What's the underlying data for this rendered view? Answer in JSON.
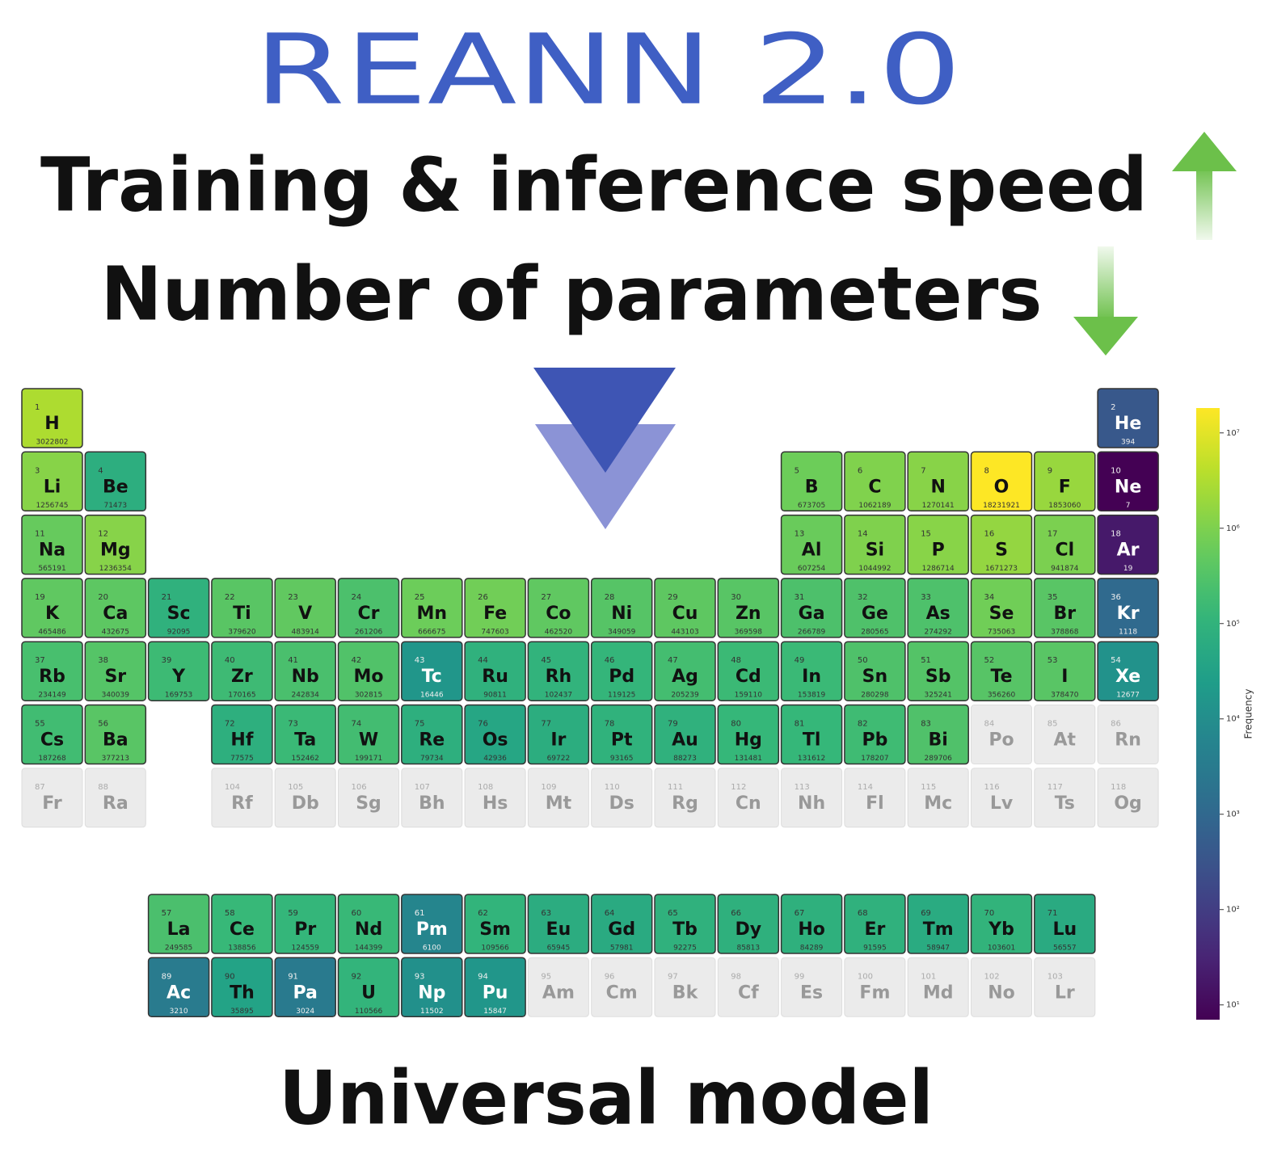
{
  "chart_data": {
    "type": "periodic_table",
    "title": "REANN 2.0",
    "annotations": [
      "Training & inference speed",
      "Number of parameters",
      "Universal model"
    ],
    "atomic_numbers": [
      1,
      2,
      3,
      4,
      5,
      6,
      7,
      8,
      9,
      10,
      11,
      12,
      13,
      14,
      15,
      16,
      17,
      18,
      19,
      20,
      21,
      22,
      23,
      24,
      25,
      26,
      27,
      28,
      29,
      30,
      31,
      32,
      33,
      34,
      35,
      36,
      37,
      38,
      39,
      40,
      41,
      42,
      43,
      44,
      45,
      46,
      47,
      48,
      49,
      50,
      51,
      52,
      53,
      54,
      55,
      56,
      57,
      58,
      59,
      60,
      61,
      62,
      63,
      64,
      65,
      66,
      67,
      68,
      69,
      70,
      71,
      72,
      73,
      74,
      75,
      76,
      77,
      78,
      79,
      80,
      81,
      82,
      83,
      84,
      85,
      86,
      87,
      88,
      89,
      90,
      91,
      92,
      93,
      94,
      95,
      96,
      97,
      98,
      99,
      100,
      101,
      102,
      103,
      104,
      105,
      106,
      107,
      108,
      109,
      110,
      111,
      112,
      113,
      114,
      115,
      116,
      117,
      118
    ],
    "categories": [
      "H",
      "He",
      "Li",
      "Be",
      "B",
      "C",
      "N",
      "O",
      "F",
      "Ne",
      "Na",
      "Mg",
      "Al",
      "Si",
      "P",
      "S",
      "Cl",
      "Ar",
      "K",
      "Ca",
      "Sc",
      "Ti",
      "V",
      "Cr",
      "Mn",
      "Fe",
      "Co",
      "Ni",
      "Cu",
      "Zn",
      "Ga",
      "Ge",
      "As",
      "Se",
      "Br",
      "Kr",
      "Rb",
      "Sr",
      "Y",
      "Zr",
      "Nb",
      "Mo",
      "Tc",
      "Ru",
      "Rh",
      "Pd",
      "Ag",
      "Cd",
      "In",
      "Sn",
      "Sb",
      "Te",
      "I",
      "Xe",
      "Cs",
      "Ba",
      "La",
      "Ce",
      "Pr",
      "Nd",
      "Pm",
      "Sm",
      "Eu",
      "Gd",
      "Tb",
      "Dy",
      "Ho",
      "Er",
      "Tm",
      "Yb",
      "Lu",
      "Hf",
      "Ta",
      "W",
      "Re",
      "Os",
      "Ir",
      "Pt",
      "Au",
      "Hg",
      "Tl",
      "Pb",
      "Bi",
      "Po",
      "At",
      "Rn",
      "Fr",
      "Ra",
      "Ac",
      "Th",
      "Pa",
      "U",
      "Np",
      "Pu",
      "Am",
      "Cm",
      "Bk",
      "Cf",
      "Es",
      "Fm",
      "Md",
      "No",
      "Lr",
      "Rf",
      "Db",
      "Sg",
      "Bh",
      "Hs",
      "Mt",
      "Ds",
      "Rg",
      "Cn",
      "Nh",
      "Fl",
      "Mc",
      "Lv",
      "Ts",
      "Og"
    ],
    "values": [
      3022802,
      394,
      1256745,
      71473,
      673705,
      1062189,
      1270141,
      18231921,
      1853060,
      7,
      565191,
      1236354,
      607254,
      1044992,
      1286714,
      1671273,
      941874,
      19,
      465486,
      432675,
      92095,
      379620,
      483914,
      261206,
      666675,
      747603,
      462520,
      349059,
      443103,
      369598,
      266789,
      280565,
      274292,
      735063,
      378868,
      1118,
      234149,
      340039,
      169753,
      170165,
      242834,
      302815,
      16446,
      90811,
      102437,
      119125,
      205239,
      159110,
      153819,
      280298,
      325241,
      356260,
      378470,
      12677,
      187268,
      377213,
      249585,
      138856,
      124559,
      144399,
      6100,
      109566,
      65945,
      57981,
      92275,
      85813,
      84289,
      91595,
      58947,
      103601,
      56557,
      77575,
      152462,
      199171,
      79734,
      42936,
      69722,
      93165,
      88273,
      131481,
      131612,
      178207,
      289706,
      null,
      null,
      null,
      null,
      null,
      3210,
      35895,
      3024,
      110566,
      11502,
      15847,
      null,
      null,
      null,
      null,
      null,
      null,
      null,
      null,
      null,
      null,
      null,
      null,
      null,
      null,
      null,
      null,
      null,
      null,
      null,
      null,
      null,
      null,
      null,
      null
    ],
    "colorbar_label": "Frequency",
    "colormap": "viridis",
    "log_scale": true,
    "clim": [
      7,
      18231921
    ],
    "cticks": [
      {
        "value": 10,
        "label": "10¹"
      },
      {
        "value": 100,
        "label": "10²"
      },
      {
        "value": 1000,
        "label": "10³"
      },
      {
        "value": 10000,
        "label": "10⁴"
      },
      {
        "value": 100000,
        "label": "10⁵"
      },
      {
        "value": 1000000,
        "label": "10⁶"
      },
      {
        "value": 10000000,
        "label": "10⁷"
      }
    ]
  }
}
